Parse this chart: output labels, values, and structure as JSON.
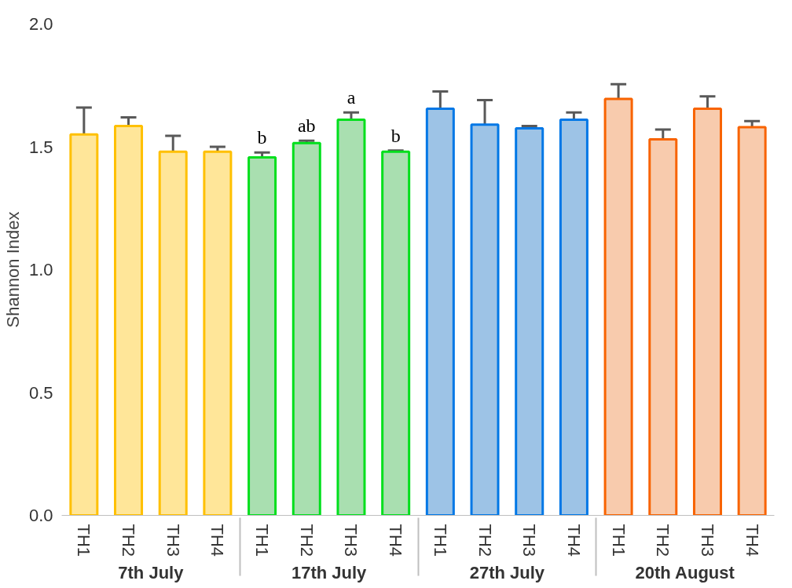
{
  "chart_data": {
    "type": "bar",
    "ylabel": "Shannon Index",
    "categories": [
      "TH1",
      "TH2",
      "TH3",
      "TH4",
      "TH1",
      "TH2",
      "TH3",
      "TH4",
      "TH1",
      "TH2",
      "TH3",
      "TH4",
      "TH1",
      "TH2",
      "TH3",
      "TH4"
    ],
    "series": [
      {
        "name": "7th July",
        "color": "#ffe699",
        "values": [
          1.55,
          1.585,
          1.48,
          1.48,
          null,
          null,
          null,
          null,
          null,
          null,
          null,
          null,
          null,
          null,
          null,
          null
        ],
        "errors": [
          0.11,
          0.035,
          0.065,
          0.02,
          null,
          null,
          null,
          null,
          null,
          null,
          null,
          null,
          null,
          null,
          null,
          null
        ]
      },
      {
        "name": "17th July",
        "color": "#a9dfb0",
        "values": [
          null,
          null,
          null,
          null,
          1.457,
          1.515,
          1.61,
          1.48,
          null,
          null,
          null,
          null,
          null,
          null,
          null,
          null
        ],
        "errors": [
          null,
          null,
          null,
          null,
          0.02,
          0.01,
          0.03,
          0.005,
          null,
          null,
          null,
          null,
          null,
          null,
          null,
          null
        ],
        "value_labels": [
          null,
          null,
          null,
          null,
          "b",
          "ab",
          "a",
          "b",
          null,
          null,
          null,
          null,
          null,
          null,
          null,
          null
        ]
      },
      {
        "name": "27th July",
        "color": "#9dc3e6",
        "values": [
          null,
          null,
          null,
          null,
          null,
          null,
          null,
          null,
          1.655,
          1.59,
          1.575,
          1.61,
          null,
          null,
          null,
          null
        ],
        "errors": [
          null,
          null,
          null,
          null,
          null,
          null,
          null,
          null,
          0.07,
          0.1,
          0.01,
          0.03,
          null,
          null,
          null,
          null
        ]
      },
      {
        "name": "20th August",
        "color": "#f8cbad",
        "values": [
          null,
          null,
          null,
          null,
          null,
          null,
          null,
          null,
          null,
          null,
          null,
          null,
          1.695,
          1.53,
          1.655,
          1.58
        ],
        "errors": [
          null,
          null,
          null,
          null,
          null,
          null,
          null,
          null,
          null,
          null,
          null,
          null,
          0.06,
          0.04,
          0.05,
          0.025
        ]
      }
    ],
    "ylim": [
      0,
      2
    ],
    "yticks": [
      {
        "value": 0,
        "label": "0.0"
      },
      {
        "value": 0.5,
        "label": "0.5"
      },
      {
        "value": 1,
        "label": "1.0"
      },
      {
        "value": 1.5,
        "label": "1.5"
      },
      {
        "value": 2,
        "label": "2.0"
      }
    ],
    "grid": false
  }
}
